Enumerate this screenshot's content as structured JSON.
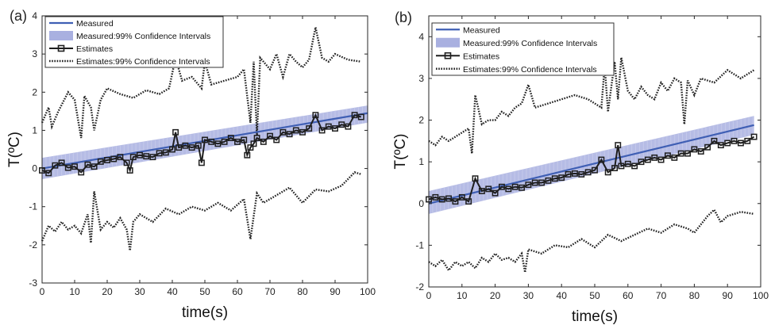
{
  "figure": {
    "colors": {
      "measured": "#3f5fb4",
      "ci_band": "#a9b0e0",
      "estimates": "#1e1e1e",
      "axis": "#262626"
    }
  },
  "chart_data": [
    {
      "panel_label": "(a)",
      "type": "line",
      "xlabel": "time(s)",
      "ylabel": "T(ºC)",
      "xlim": [
        0,
        100
      ],
      "ylim": [
        -3,
        4
      ],
      "xticks": [
        "0",
        "10",
        "20",
        "30",
        "40",
        "50",
        "60",
        "70",
        "80",
        "90",
        "100"
      ],
      "yticks": [
        "-3",
        "-2",
        "-1",
        "0",
        "1",
        "2",
        "3",
        "4"
      ],
      "grid": false,
      "legend_position": "top-left",
      "legend": [
        "Measured",
        "Measured:99% Confidence Intervals",
        "Estimates",
        "Estimates:99% Confidence Intervals"
      ],
      "series": [
        {
          "name": "Measured",
          "style": "line",
          "x": [
            0,
            100
          ],
          "y": [
            0.0,
            1.45
          ]
        },
        {
          "name": "Measured:99% Confidence Intervals",
          "style": "band",
          "x": [
            0,
            100
          ],
          "lower": [
            -0.28,
            1.2
          ],
          "upper": [
            0.28,
            1.65
          ]
        },
        {
          "name": "Estimates",
          "style": "line-square-markers",
          "x": [
            0,
            2,
            4,
            6,
            8,
            10,
            12,
            14,
            16,
            18,
            20,
            22,
            24,
            26,
            27,
            28,
            30,
            32,
            34,
            36,
            38,
            40,
            41,
            42,
            44,
            46,
            48,
            49,
            50,
            52,
            54,
            56,
            58,
            60,
            62,
            63,
            64,
            65,
            66,
            68,
            70,
            72,
            74,
            76,
            78,
            80,
            82,
            84,
            86,
            88,
            90,
            92,
            94,
            96,
            98
          ],
          "y": [
            -0.05,
            -0.12,
            0.08,
            0.15,
            0.02,
            0.05,
            -0.1,
            0.1,
            0.05,
            0.18,
            0.22,
            0.25,
            0.3,
            0.15,
            -0.05,
            0.3,
            0.35,
            0.32,
            0.3,
            0.4,
            0.42,
            0.5,
            0.95,
            0.55,
            0.6,
            0.55,
            0.6,
            0.15,
            0.75,
            0.7,
            0.65,
            0.7,
            0.8,
            0.7,
            0.75,
            0.35,
            0.55,
            0.65,
            0.8,
            0.7,
            0.85,
            0.75,
            0.95,
            0.9,
            1.0,
            0.95,
            1.05,
            1.4,
            1.0,
            1.1,
            1.05,
            1.15,
            1.1,
            1.4,
            1.35
          ]
        },
        {
          "name": "Estimates:99% Confidence Intervals",
          "style": "dotted",
          "part": "upper",
          "x": [
            0,
            2,
            3,
            5,
            8,
            10,
            12,
            13,
            15,
            16,
            18,
            20,
            24,
            28,
            32,
            36,
            39,
            41,
            43,
            46,
            49,
            50,
            52,
            56,
            60,
            62,
            64,
            65,
            66,
            67,
            70,
            72,
            74,
            76,
            78,
            80,
            82,
            84,
            86,
            88,
            90,
            94,
            98
          ],
          "y": [
            1.2,
            1.6,
            1.1,
            1.5,
            2.0,
            1.8,
            0.8,
            1.9,
            1.6,
            1.0,
            1.8,
            2.1,
            1.95,
            1.85,
            2.05,
            1.95,
            2.1,
            2.9,
            2.3,
            2.4,
            2.1,
            2.8,
            2.2,
            2.3,
            2.4,
            2.6,
            1.2,
            2.8,
            0.85,
            2.9,
            2.6,
            3.0,
            2.4,
            3.0,
            2.8,
            2.65,
            2.85,
            3.7,
            2.9,
            2.8,
            3.0,
            2.85,
            2.8
          ]
        },
        {
          "name": "Estimates:99% Confidence Intervals",
          "style": "dotted",
          "part": "lower",
          "x": [
            0,
            2,
            4,
            6,
            8,
            10,
            12,
            14,
            15,
            16,
            18,
            20,
            22,
            24,
            26,
            27,
            28,
            30,
            34,
            38,
            42,
            46,
            50,
            54,
            58,
            62,
            64,
            66,
            68,
            72,
            76,
            80,
            84,
            88,
            92,
            96,
            98
          ],
          "y": [
            -1.9,
            -1.5,
            -1.65,
            -1.4,
            -1.6,
            -1.5,
            -1.7,
            -1.2,
            -1.95,
            -0.6,
            -1.6,
            -1.4,
            -1.55,
            -1.3,
            -1.6,
            -2.15,
            -1.4,
            -1.2,
            -1.4,
            -1.05,
            -1.2,
            -1.0,
            -1.1,
            -0.9,
            -1.1,
            -0.8,
            -1.85,
            -0.65,
            -0.9,
            -0.7,
            -0.5,
            -0.9,
            -0.55,
            -0.6,
            -0.45,
            -0.1,
            -0.15
          ]
        }
      ]
    },
    {
      "panel_label": "(b)",
      "type": "line",
      "xlabel": "time(s)",
      "ylabel": "T(ºC)",
      "xlim": [
        0,
        100
      ],
      "ylim": [
        -2,
        4.5
      ],
      "xticks": [
        "0",
        "10",
        "20",
        "30",
        "40",
        "50",
        "60",
        "70",
        "80",
        "90",
        "100"
      ],
      "yticks": [
        "-2",
        "-1",
        "0",
        "1",
        "2",
        "3",
        "4"
      ],
      "grid": false,
      "legend_position": "top-left",
      "legend": [
        "Measured",
        "Measured:99% Confidence Intervals",
        "Estimates",
        "Estimates:99% Confidence Intervals"
      ],
      "series": [
        {
          "name": "Measured",
          "style": "line",
          "x": [
            0,
            98
          ],
          "y": [
            0.0,
            1.88
          ]
        },
        {
          "name": "Measured:99% Confidence Intervals",
          "style": "band",
          "x": [
            0,
            98
          ],
          "lower": [
            -0.25,
            1.65
          ],
          "upper": [
            0.3,
            2.1
          ]
        },
        {
          "name": "Estimates",
          "style": "line-square-markers",
          "x": [
            0,
            2,
            4,
            6,
            8,
            10,
            12,
            14,
            16,
            18,
            20,
            22,
            24,
            26,
            28,
            30,
            32,
            34,
            36,
            38,
            40,
            42,
            44,
            46,
            48,
            50,
            52,
            54,
            56,
            57,
            58,
            60,
            62,
            64,
            66,
            68,
            70,
            72,
            74,
            76,
            78,
            80,
            82,
            84,
            86,
            88,
            90,
            92,
            94,
            96,
            98
          ],
          "y": [
            0.1,
            0.15,
            0.1,
            0.12,
            0.05,
            0.15,
            0.05,
            0.6,
            0.3,
            0.35,
            0.25,
            0.4,
            0.35,
            0.4,
            0.38,
            0.45,
            0.5,
            0.5,
            0.55,
            0.6,
            0.62,
            0.7,
            0.72,
            0.7,
            0.75,
            0.8,
            1.05,
            0.75,
            0.85,
            1.4,
            0.9,
            0.95,
            0.9,
            1.0,
            1.05,
            1.1,
            1.05,
            1.15,
            1.1,
            1.2,
            1.2,
            1.3,
            1.25,
            1.35,
            1.5,
            1.4,
            1.45,
            1.5,
            1.45,
            1.5,
            1.6
          ]
        },
        {
          "name": "Estimates:99% Confidence Intervals",
          "style": "dotted",
          "part": "upper",
          "x": [
            0,
            2,
            4,
            6,
            8,
            10,
            12,
            13,
            14,
            16,
            18,
            20,
            22,
            24,
            26,
            28,
            30,
            32,
            36,
            40,
            44,
            48,
            52,
            53,
            54,
            56,
            57,
            58,
            60,
            62,
            64,
            66,
            68,
            70,
            72,
            74,
            76,
            77,
            78,
            80,
            82,
            86,
            90,
            94,
            98
          ],
          "y": [
            1.5,
            1.4,
            1.6,
            1.5,
            1.6,
            1.7,
            1.8,
            1.2,
            2.6,
            1.9,
            2.0,
            2.0,
            2.2,
            2.1,
            2.3,
            2.4,
            2.85,
            2.3,
            2.4,
            2.5,
            2.6,
            2.5,
            2.3,
            3.3,
            2.2,
            3.4,
            2.5,
            3.5,
            2.7,
            2.5,
            2.8,
            2.6,
            2.5,
            2.9,
            2.7,
            3.0,
            2.9,
            1.9,
            2.95,
            2.6,
            3.0,
            2.9,
            3.2,
            3.0,
            3.2
          ]
        },
        {
          "name": "Estimates:99% Confidence Intervals",
          "style": "dotted",
          "part": "lower",
          "x": [
            0,
            2,
            4,
            6,
            8,
            10,
            12,
            14,
            16,
            18,
            20,
            22,
            24,
            26,
            28,
            29,
            30,
            34,
            38,
            42,
            46,
            50,
            54,
            58,
            62,
            66,
            70,
            74,
            78,
            80,
            84,
            86,
            88,
            90,
            94,
            98
          ],
          "y": [
            -1.4,
            -1.5,
            -1.35,
            -1.6,
            -1.4,
            -1.5,
            -1.4,
            -1.55,
            -1.3,
            -1.4,
            -1.2,
            -1.35,
            -1.3,
            -1.4,
            -1.2,
            -1.65,
            -1.1,
            -1.2,
            -1.0,
            -1.05,
            -0.85,
            -1.05,
            -0.75,
            -0.9,
            -0.75,
            -0.6,
            -0.7,
            -0.5,
            -0.6,
            -0.7,
            -0.3,
            -0.15,
            -0.45,
            -0.3,
            -0.2,
            -0.25
          ]
        }
      ]
    }
  ]
}
